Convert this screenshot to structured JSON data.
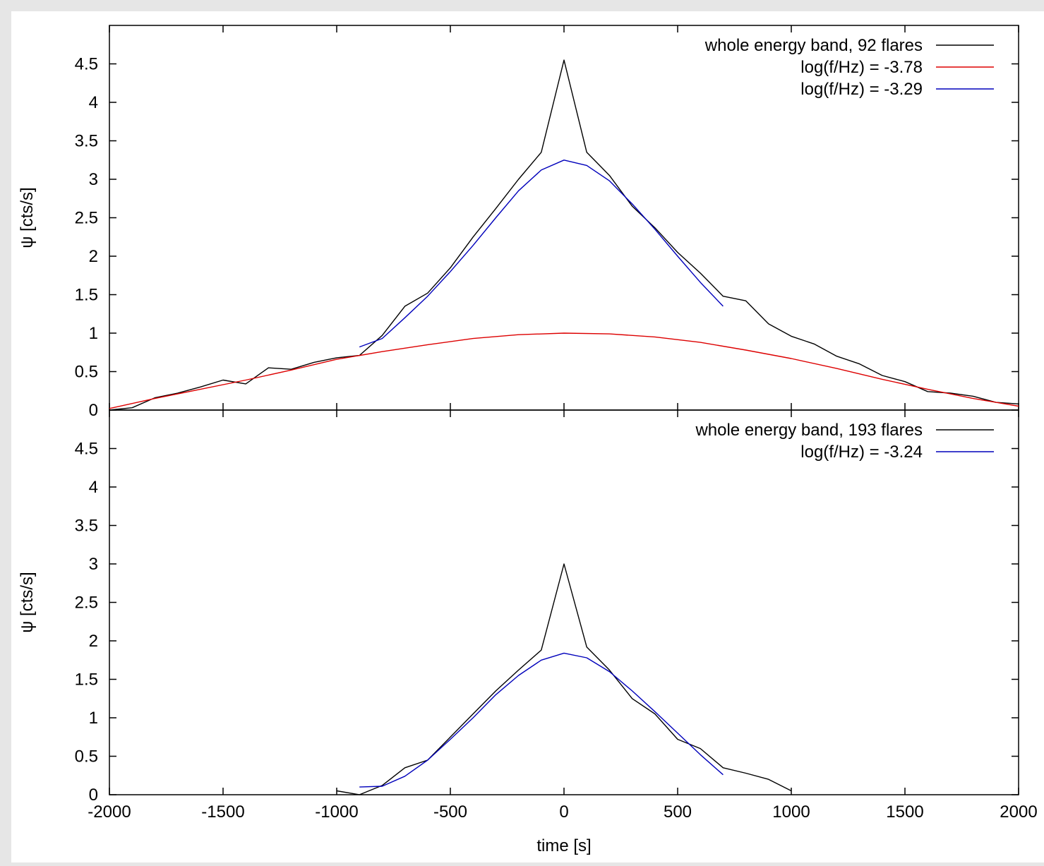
{
  "chart_data": [
    {
      "type": "line",
      "xlabel": "",
      "ylabel": "ψ [cts/s]",
      "xlim": [
        -2000,
        2000
      ],
      "ylim": [
        0,
        5
      ],
      "xticks": [
        -2000,
        -1500,
        -1000,
        -500,
        0,
        500,
        1000,
        1500,
        2000
      ],
      "yticks": [
        0,
        0.5,
        1,
        1.5,
        2,
        2.5,
        3,
        3.5,
        4,
        4.5
      ],
      "ytick_labels": [
        "0",
        "0.5",
        "1",
        "1.5",
        "2",
        "2.5",
        "3",
        "3.5",
        "4",
        "4.5"
      ],
      "legend_position": "top-right",
      "grid": false,
      "series": [
        {
          "name": "whole energy band, 92 flares",
          "color": "#000000",
          "x": [
            -2000,
            -1900,
            -1800,
            -1700,
            -1600,
            -1500,
            -1400,
            -1300,
            -1200,
            -1100,
            -1000,
            -900,
            -800,
            -700,
            -600,
            -500,
            -400,
            -300,
            -200,
            -100,
            0,
            100,
            200,
            300,
            400,
            500,
            600,
            700,
            800,
            900,
            1000,
            1100,
            1200,
            1300,
            1400,
            1500,
            1600,
            1700,
            1800,
            1900,
            2000
          ],
          "y": [
            0.0,
            0.03,
            0.16,
            0.22,
            0.3,
            0.39,
            0.34,
            0.55,
            0.53,
            0.62,
            0.68,
            0.71,
            0.97,
            1.35,
            1.52,
            1.85,
            2.25,
            2.62,
            3.0,
            3.35,
            4.55,
            3.35,
            3.05,
            2.65,
            2.37,
            2.05,
            1.78,
            1.48,
            1.42,
            1.12,
            0.96,
            0.86,
            0.7,
            0.6,
            0.45,
            0.37,
            0.24,
            0.22,
            0.18,
            0.1,
            0.08
          ]
        },
        {
          "name": "log(f/Hz) = -3.78",
          "color": "#dd0000",
          "x": [
            -2000,
            -1800,
            -1600,
            -1400,
            -1200,
            -1000,
            -800,
            -600,
            -400,
            -200,
            0,
            200,
            400,
            600,
            800,
            1000,
            1200,
            1400,
            1600,
            1800,
            2000
          ],
          "y": [
            0.02,
            0.15,
            0.27,
            0.39,
            0.52,
            0.66,
            0.76,
            0.85,
            0.93,
            0.98,
            1.0,
            0.99,
            0.95,
            0.88,
            0.78,
            0.67,
            0.54,
            0.4,
            0.27,
            0.15,
            0.05
          ]
        },
        {
          "name": "log(f/Hz) = -3.29",
          "color": "#0000bb",
          "x": [
            -900,
            -800,
            -700,
            -600,
            -500,
            -400,
            -300,
            -200,
            -100,
            0,
            100,
            200,
            300,
            400,
            500,
            600,
            700
          ],
          "y": [
            0.82,
            0.93,
            1.2,
            1.48,
            1.8,
            2.14,
            2.5,
            2.85,
            3.12,
            3.25,
            3.18,
            2.98,
            2.68,
            2.35,
            2.0,
            1.66,
            1.35
          ]
        }
      ]
    },
    {
      "type": "line",
      "xlabel": "time [s]",
      "ylabel": "ψ [cts/s]",
      "xlim": [
        -2000,
        2000
      ],
      "ylim": [
        0,
        5
      ],
      "xticks": [
        -2000,
        -1500,
        -1000,
        -500,
        0,
        500,
        1000,
        1500,
        2000
      ],
      "xtick_labels": [
        "-2000",
        "-1500",
        "-1000",
        "-500",
        "0",
        "500",
        "1000",
        "1500",
        "2000"
      ],
      "yticks": [
        0,
        0.5,
        1,
        1.5,
        2,
        2.5,
        3,
        3.5,
        4,
        4.5
      ],
      "ytick_labels": [
        "0",
        "0.5",
        "1",
        "1.5",
        "2",
        "2.5",
        "3",
        "3.5",
        "4",
        "4.5"
      ],
      "legend_position": "top-right",
      "grid": false,
      "series": [
        {
          "name": "whole energy band, 193 flares",
          "color": "#000000",
          "x": [
            -1000,
            -900,
            -800,
            -700,
            -600,
            -500,
            -400,
            -300,
            -200,
            -100,
            0,
            100,
            200,
            300,
            400,
            500,
            600,
            700,
            800,
            900,
            1000
          ],
          "y": [
            0.05,
            0.0,
            0.12,
            0.35,
            0.45,
            0.75,
            1.05,
            1.35,
            1.62,
            1.88,
            3.0,
            1.92,
            1.62,
            1.25,
            1.05,
            0.72,
            0.6,
            0.35,
            0.28,
            0.2,
            0.05
          ]
        },
        {
          "name": "log(f/Hz) = -3.24",
          "color": "#0000bb",
          "x": [
            -900,
            -800,
            -700,
            -600,
            -500,
            -400,
            -300,
            -200,
            -100,
            0,
            100,
            200,
            300,
            400,
            500,
            600,
            700
          ],
          "y": [
            0.1,
            0.11,
            0.24,
            0.45,
            0.72,
            1.0,
            1.3,
            1.55,
            1.75,
            1.84,
            1.78,
            1.6,
            1.35,
            1.08,
            0.8,
            0.52,
            0.26
          ]
        }
      ]
    }
  ]
}
